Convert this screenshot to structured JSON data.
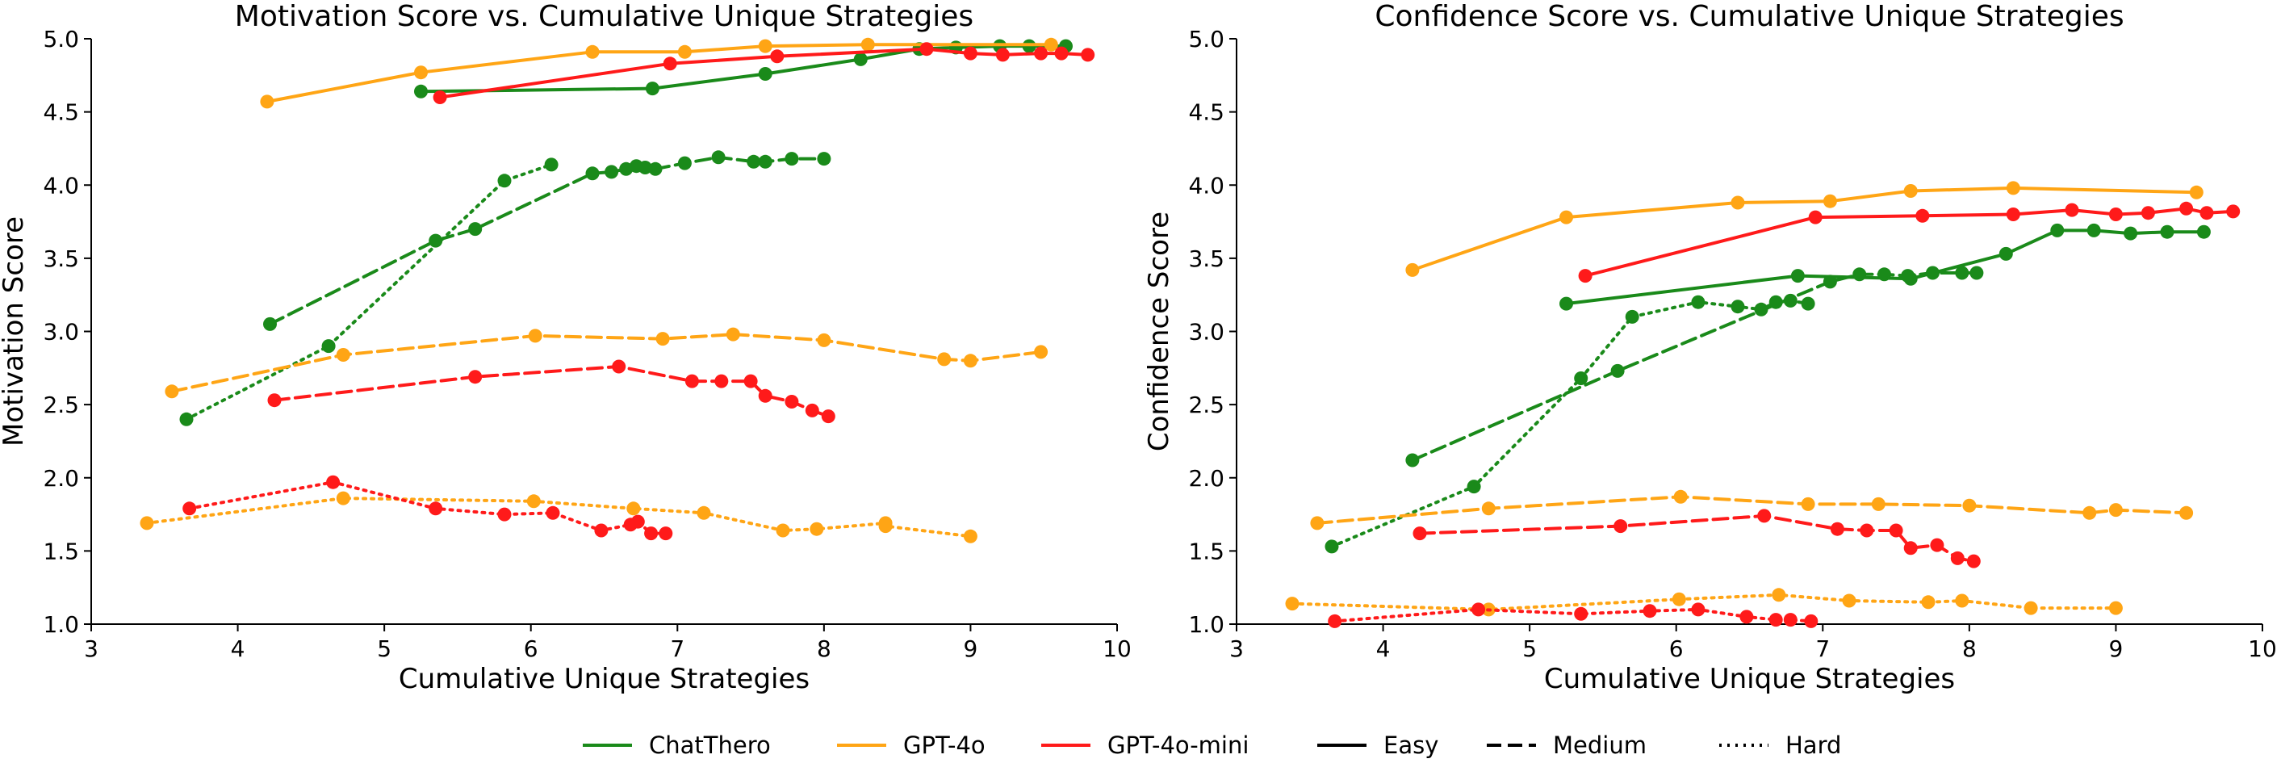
{
  "styles": [
    {
      "name": "Easy",
      "dash": "solid"
    },
    {
      "name": "Medium",
      "dash": "dashed"
    },
    {
      "name": "Hard",
      "dash": "dotted"
    }
  ],
  "models": [
    {
      "name": "ChatThero",
      "color": "#1a8a1a"
    },
    {
      "name": "GPT-4o",
      "color": "#ffa515"
    },
    {
      "name": "GPT-4o-mini",
      "color": "#ff1a1a"
    }
  ],
  "legend": {
    "placement": "bottom-center",
    "entries": [
      {
        "label": "ChatThero",
        "color": "#1a8a1a",
        "dash": "solid"
      },
      {
        "label": "GPT-4o",
        "color": "#ffa515",
        "dash": "solid"
      },
      {
        "label": "GPT-4o-mini",
        "color": "#ff1a1a",
        "dash": "solid"
      },
      {
        "label": "Easy",
        "color": "#000000",
        "dash": "solid"
      },
      {
        "label": "Medium",
        "color": "#000000",
        "dash": "dashed"
      },
      {
        "label": "Hard",
        "color": "#000000",
        "dash": "dotted"
      }
    ]
  },
  "chart_data": [
    {
      "type": "line",
      "title": "Motivation Score vs. Cumulative Unique Strategies",
      "xlabel": "Cumulative Unique Strategies",
      "ylabel": "Motivation Score",
      "xlim": [
        3,
        10
      ],
      "ylim": [
        1.0,
        5.0
      ],
      "xticks": [
        3,
        4,
        5,
        6,
        7,
        8,
        9,
        10
      ],
      "yticks": [
        1.0,
        1.5,
        2.0,
        2.5,
        3.0,
        3.5,
        4.0,
        4.5,
        5.0
      ],
      "grid": false,
      "series": [
        {
          "model": "ChatThero",
          "difficulty": "Easy",
          "x": [
            5.25,
            6.83,
            7.6,
            8.25,
            8.65,
            8.9,
            9.2,
            9.4,
            9.65
          ],
          "y": [
            4.64,
            4.66,
            4.76,
            4.86,
            4.93,
            4.94,
            4.95,
            4.95,
            4.95
          ]
        },
        {
          "model": "ChatThero",
          "difficulty": "Medium",
          "x": [
            4.22,
            5.35,
            5.62,
            6.42,
            6.55,
            6.65,
            6.72,
            6.78,
            6.85,
            7.05,
            7.28,
            7.52,
            7.6,
            7.78,
            8.0
          ],
          "y": [
            3.05,
            3.62,
            3.7,
            4.08,
            4.09,
            4.11,
            4.13,
            4.12,
            4.11,
            4.15,
            4.19,
            4.16,
            4.16,
            4.18,
            4.18
          ]
        },
        {
          "model": "ChatThero",
          "difficulty": "Hard",
          "x": [
            3.65,
            4.62,
            5.82,
            6.14
          ],
          "y": [
            2.4,
            2.9,
            4.03,
            4.14
          ]
        },
        {
          "model": "GPT-4o",
          "difficulty": "Easy",
          "x": [
            4.2,
            5.25,
            6.42,
            7.05,
            7.6,
            8.3,
            9.55
          ],
          "y": [
            4.57,
            4.77,
            4.91,
            4.91,
            4.95,
            4.96,
            4.96
          ]
        },
        {
          "model": "GPT-4o",
          "difficulty": "Medium",
          "x": [
            3.55,
            4.72,
            6.03,
            6.9,
            7.38,
            8.0,
            8.82,
            9.0,
            9.48
          ],
          "y": [
            2.59,
            2.84,
            2.97,
            2.95,
            2.98,
            2.94,
            2.81,
            2.8,
            2.86
          ]
        },
        {
          "model": "GPT-4o",
          "difficulty": "Hard",
          "x": [
            3.38,
            4.72,
            6.02,
            6.7,
            7.18,
            7.72,
            7.95,
            8.42,
            8.42,
            9.0
          ],
          "y": [
            1.69,
            1.86,
            1.84,
            1.79,
            1.76,
            1.64,
            1.65,
            1.69,
            1.67,
            1.6
          ]
        },
        {
          "model": "GPT-4o-mini",
          "difficulty": "Easy",
          "x": [
            5.38,
            6.95,
            7.68,
            8.7,
            9.0,
            9.22,
            9.48,
            9.62,
            9.8
          ],
          "y": [
            4.6,
            4.83,
            4.88,
            4.93,
            4.9,
            4.89,
            4.9,
            4.9,
            4.89
          ]
        },
        {
          "model": "GPT-4o-mini",
          "difficulty": "Medium",
          "x": [
            4.25,
            5.62,
            6.6,
            7.1,
            7.3,
            7.5,
            7.6,
            7.78,
            7.92,
            8.03
          ],
          "y": [
            2.53,
            2.69,
            2.76,
            2.66,
            2.66,
            2.66,
            2.56,
            2.52,
            2.46,
            2.42
          ]
        },
        {
          "model": "GPT-4o-mini",
          "difficulty": "Hard",
          "x": [
            3.67,
            4.65,
            5.35,
            5.82,
            6.15,
            6.48,
            6.68,
            6.73,
            6.82,
            6.92
          ],
          "y": [
            1.79,
            1.97,
            1.79,
            1.75,
            1.76,
            1.64,
            1.68,
            1.7,
            1.62,
            1.62
          ]
        }
      ]
    },
    {
      "type": "line",
      "title": "Confidence Score vs. Cumulative Unique Strategies",
      "xlabel": "Cumulative Unique Strategies",
      "ylabel": "Confidence Score",
      "xlim": [
        3,
        10
      ],
      "ylim": [
        1.0,
        5.0
      ],
      "xticks": [
        3,
        4,
        5,
        6,
        7,
        8,
        9,
        10
      ],
      "yticks": [
        1.0,
        1.5,
        2.0,
        2.5,
        3.0,
        3.5,
        4.0,
        4.5,
        5.0
      ],
      "grid": false,
      "series": [
        {
          "model": "ChatThero",
          "difficulty": "Easy",
          "x": [
            5.25,
            6.83,
            7.6,
            8.25,
            8.6,
            8.85,
            9.1,
            9.35,
            9.6
          ],
          "y": [
            3.19,
            3.38,
            3.36,
            3.53,
            3.69,
            3.69,
            3.67,
            3.68,
            3.68
          ]
        },
        {
          "model": "ChatThero",
          "difficulty": "Medium",
          "x": [
            4.2,
            5.6,
            7.05,
            7.25,
            7.42,
            7.58,
            7.75,
            7.95,
            8.05
          ],
          "y": [
            2.12,
            2.73,
            3.34,
            3.39,
            3.39,
            3.38,
            3.4,
            3.4,
            3.4
          ]
        },
        {
          "model": "ChatThero",
          "difficulty": "Hard",
          "x": [
            3.65,
            4.62,
            5.35,
            5.7,
            6.15,
            6.42,
            6.58,
            6.68,
            6.78,
            6.9
          ],
          "y": [
            1.53,
            1.94,
            2.68,
            3.1,
            3.2,
            3.17,
            3.15,
            3.2,
            3.21,
            3.19
          ]
        },
        {
          "model": "GPT-4o",
          "difficulty": "Easy",
          "x": [
            4.2,
            5.25,
            6.42,
            7.05,
            7.6,
            8.3,
            9.55
          ],
          "y": [
            3.42,
            3.78,
            3.88,
            3.89,
            3.96,
            3.98,
            3.95
          ]
        },
        {
          "model": "GPT-4o",
          "difficulty": "Medium",
          "x": [
            3.55,
            4.72,
            6.03,
            6.9,
            7.38,
            8.0,
            8.82,
            9.0,
            9.48
          ],
          "y": [
            1.69,
            1.79,
            1.87,
            1.82,
            1.82,
            1.81,
            1.76,
            1.78,
            1.76
          ]
        },
        {
          "model": "GPT-4o",
          "difficulty": "Hard",
          "x": [
            3.38,
            4.72,
            6.02,
            6.7,
            7.18,
            7.72,
            7.95,
            8.42,
            9.0
          ],
          "y": [
            1.14,
            1.1,
            1.17,
            1.2,
            1.16,
            1.15,
            1.16,
            1.11,
            1.11
          ]
        },
        {
          "model": "GPT-4o-mini",
          "difficulty": "Easy",
          "x": [
            5.38,
            6.95,
            7.68,
            8.3,
            8.7,
            9.0,
            9.22,
            9.48,
            9.62,
            9.8
          ],
          "y": [
            3.38,
            3.78,
            3.79,
            3.8,
            3.83,
            3.8,
            3.81,
            3.84,
            3.81,
            3.82
          ]
        },
        {
          "model": "GPT-4o-mini",
          "difficulty": "Medium",
          "x": [
            4.25,
            5.62,
            6.6,
            7.1,
            7.3,
            7.5,
            7.6,
            7.78,
            7.92,
            8.03
          ],
          "y": [
            1.62,
            1.67,
            1.74,
            1.65,
            1.64,
            1.64,
            1.52,
            1.54,
            1.45,
            1.43
          ]
        },
        {
          "model": "GPT-4o-mini",
          "difficulty": "Hard",
          "x": [
            3.67,
            4.65,
            5.35,
            5.82,
            6.15,
            6.48,
            6.68,
            6.78,
            6.92
          ],
          "y": [
            1.02,
            1.1,
            1.07,
            1.09,
            1.1,
            1.05,
            1.03,
            1.03,
            1.02
          ]
        }
      ]
    }
  ]
}
